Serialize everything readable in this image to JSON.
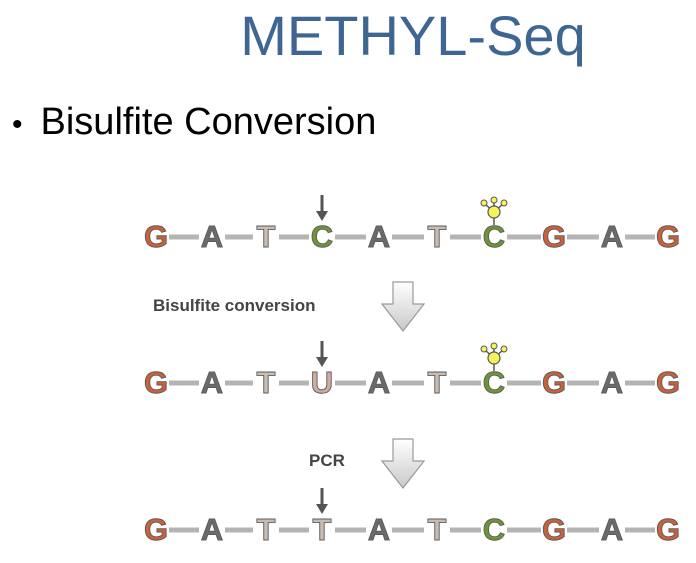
{
  "title": "METHYL-Seq",
  "bullet": "Bisulfite Conversion",
  "steps": [
    "Bisulfite  conversion",
    "PCR"
  ],
  "colors": {
    "G": "#c9613a",
    "A": "#6b6b6b",
    "T": "#c9bdb3",
    "U": "#d3aaa0",
    "C": "#6f9434",
    "link": "#b4b4b4",
    "arrow": "#555555",
    "methyl": "#f4f35a"
  },
  "sequences": [
    {
      "name": "original",
      "bases": [
        "G",
        "A",
        "T",
        "C",
        "A",
        "T",
        "C",
        "G",
        "A",
        "G"
      ],
      "marked_index": 3,
      "methylated_index": 6
    },
    {
      "name": "converted",
      "bases": [
        "G",
        "A",
        "T",
        "U",
        "A",
        "T",
        "C",
        "G",
        "A",
        "G"
      ],
      "marked_index": 3,
      "methylated_index": 6
    },
    {
      "name": "amplified",
      "bases": [
        "G",
        "A",
        "T",
        "T",
        "A",
        "T",
        "C",
        "G",
        "A",
        "G"
      ],
      "marked_index": 3,
      "methylated_index": -1
    }
  ]
}
